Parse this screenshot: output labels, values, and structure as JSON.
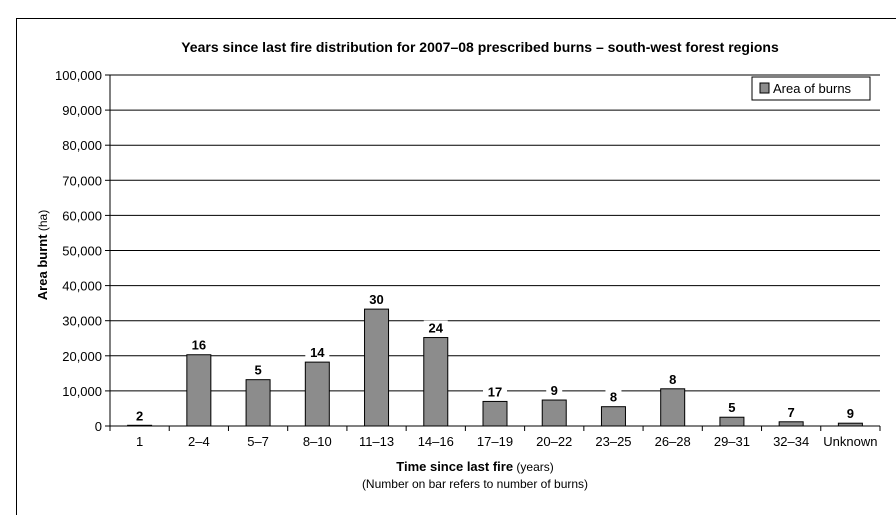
{
  "chart_data": {
    "type": "bar",
    "title": "Years since last fire distribution for 2007–08 prescribed burns – south-west forest regions",
    "ylabel_bold": "Area burnt",
    "ylabel_unit": " (ha)",
    "xlabel_bold": "Time since last fire",
    "xlabel_unit": " (years)",
    "note": "(Number on bar refers to number of burns)",
    "ylim": [
      0,
      100000
    ],
    "yticks": [
      0,
      10000,
      20000,
      30000,
      40000,
      50000,
      60000,
      70000,
      80000,
      90000,
      100000
    ],
    "ytick_labels": [
      "0",
      "10,000",
      "20,000",
      "30,000",
      "40,000",
      "50,000",
      "60,000",
      "70,000",
      "80,000",
      "90,000",
      "100,000"
    ],
    "grid": true,
    "legend_position": "top-right",
    "series": [
      {
        "name": "Area of burns",
        "color": "#8c8c8c",
        "values": [
          200,
          20300,
          13200,
          18200,
          33300,
          25200,
          7000,
          7400,
          5500,
          10600,
          2500,
          1200,
          800
        ],
        "labels": [
          "2",
          "16",
          "5",
          "14",
          "30",
          "24",
          "17",
          "9",
          "8",
          "8",
          "5",
          "7",
          "9"
        ]
      }
    ],
    "categories": [
      "1",
      "2–4",
      "5–7",
      "8–10",
      "11–13",
      "14–16",
      "17–19",
      "20–22",
      "23–25",
      "26–28",
      "29–31",
      "32–34",
      "Unknown"
    ]
  }
}
